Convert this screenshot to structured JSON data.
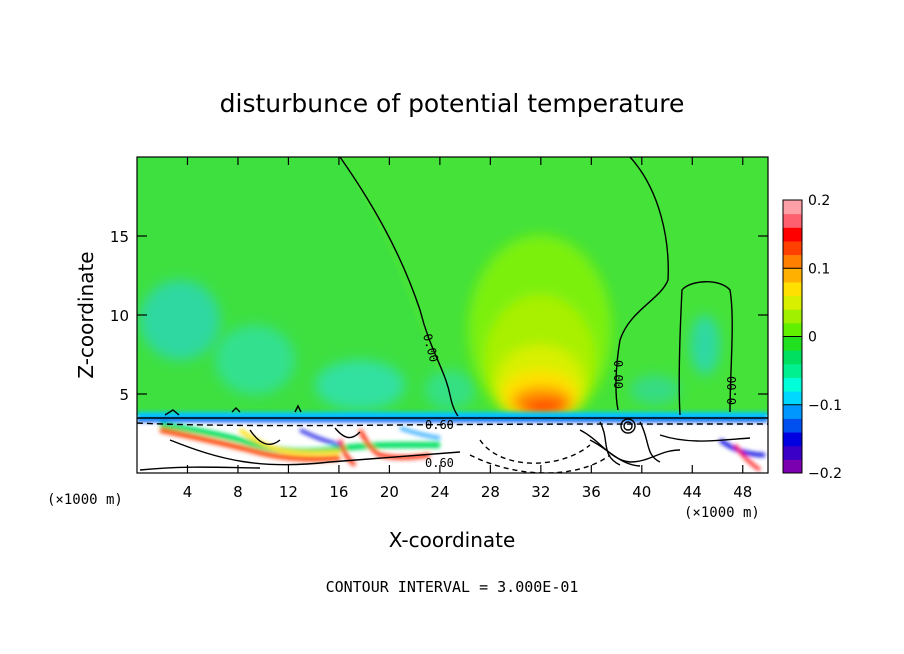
{
  "chart_data": {
    "type": "heatmap",
    "title": "disturbunce of potential temperature",
    "xlabel": "X-coordinate",
    "ylabel": "Z-coordinate",
    "x_unit_left": "(×1000 m)",
    "x_unit_right": "(×1000 m)",
    "xlim": [
      0,
      50
    ],
    "ylim": [
      0,
      20
    ],
    "x_ticks": [
      "4",
      "8",
      "12",
      "16",
      "20",
      "24",
      "28",
      "32",
      "36",
      "40",
      "44",
      "48"
    ],
    "y_ticks": [
      "5",
      "10",
      "15"
    ],
    "colorbar": {
      "range": [
        -0.2,
        0.2
      ],
      "tick_labels": [
        "0.2",
        "0.1",
        "0",
        "−0.1",
        "−0.2"
      ],
      "colors": [
        "#7a00b0",
        "#3a00c8",
        "#0000e0",
        "#0050f0",
        "#0098ff",
        "#00d8ff",
        "#00ffd8",
        "#00f090",
        "#00e060",
        "#20e020",
        "#60f000",
        "#a0f000",
        "#d8f000",
        "#ffe000",
        "#ffb000",
        "#ff8000",
        "#ff4000",
        "#ff0000",
        "#ff6070",
        "#ffa0a8"
      ]
    },
    "contour_labels": [
      "0.00",
      "0.00",
      "0.00",
      "0.60",
      "0.60"
    ],
    "footer": "CONTOUR INTERVAL = 3.000E-01"
  }
}
